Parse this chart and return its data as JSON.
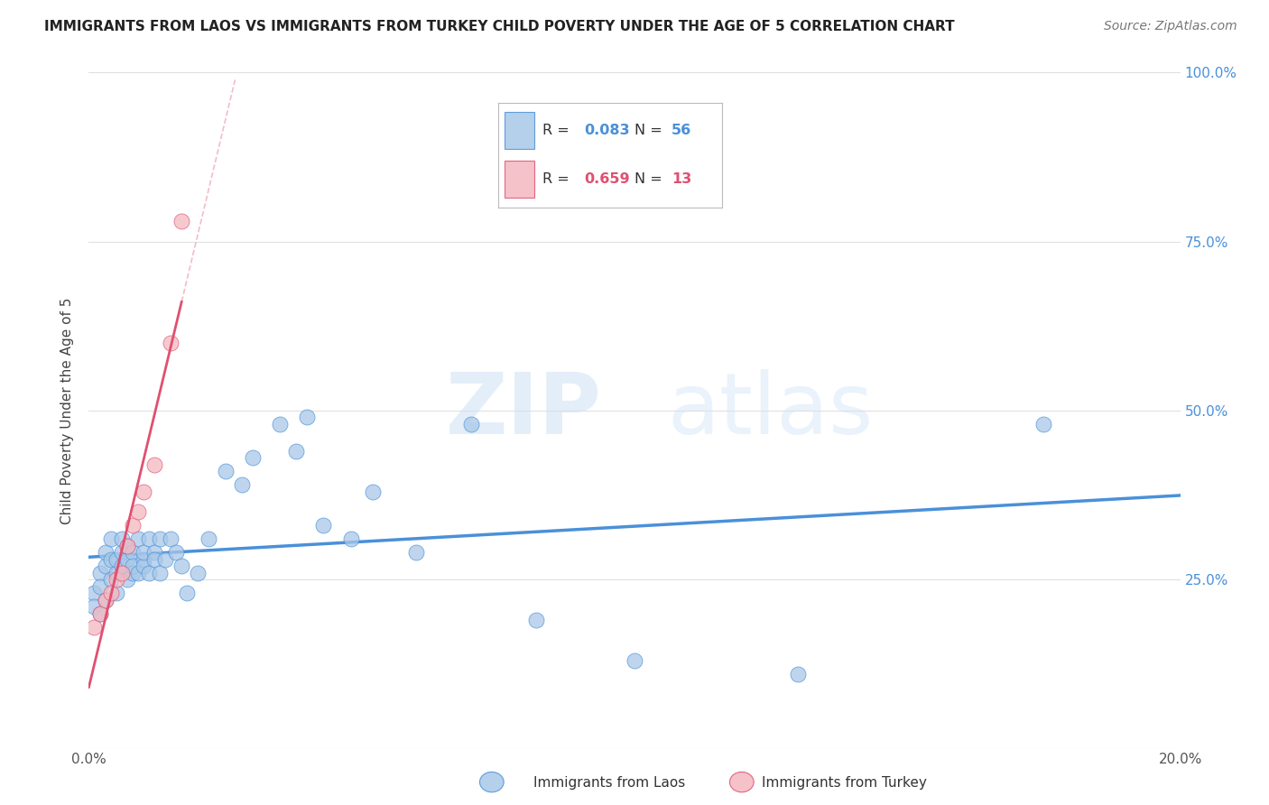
{
  "title": "IMMIGRANTS FROM LAOS VS IMMIGRANTS FROM TURKEY CHILD POVERTY UNDER THE AGE OF 5 CORRELATION CHART",
  "source": "Source: ZipAtlas.com",
  "ylabel": "Child Poverty Under the Age of 5",
  "xlabel_laos": "Immigrants from Laos",
  "xlabel_turkey": "Immigrants from Turkey",
  "r_laos": 0.083,
  "n_laos": 56,
  "r_turkey": 0.659,
  "n_turkey": 13,
  "color_laos": "#a8c8e8",
  "color_turkey": "#f4b8c0",
  "trendline_laos": "#4a90d9",
  "trendline_turkey": "#e05070",
  "trendline_turkey_dash": "#f0a0b0",
  "xlim_lo": 0.0,
  "xlim_hi": 0.2,
  "ylim_lo": 0.0,
  "ylim_hi": 1.0,
  "x_tick_positions": [
    0.0,
    0.05,
    0.1,
    0.15,
    0.2
  ],
  "x_tick_labels": [
    "0.0%",
    "",
    "",
    "",
    "20.0%"
  ],
  "y_tick_positions": [
    0.0,
    0.25,
    0.5,
    0.75,
    1.0
  ],
  "y_right_labels": [
    "",
    "25.0%",
    "50.0%",
    "75.0%",
    "100.0%"
  ],
  "laos_x": [
    0.001,
    0.001,
    0.002,
    0.002,
    0.002,
    0.003,
    0.003,
    0.003,
    0.004,
    0.004,
    0.004,
    0.005,
    0.005,
    0.005,
    0.006,
    0.006,
    0.006,
    0.007,
    0.007,
    0.007,
    0.008,
    0.008,
    0.008,
    0.009,
    0.009,
    0.01,
    0.01,
    0.01,
    0.011,
    0.011,
    0.012,
    0.012,
    0.013,
    0.013,
    0.014,
    0.015,
    0.016,
    0.017,
    0.018,
    0.02,
    0.022,
    0.025,
    0.028,
    0.03,
    0.035,
    0.038,
    0.04,
    0.043,
    0.048,
    0.052,
    0.06,
    0.07,
    0.082,
    0.1,
    0.13,
    0.175
  ],
  "laos_y": [
    0.23,
    0.21,
    0.26,
    0.2,
    0.24,
    0.27,
    0.22,
    0.29,
    0.28,
    0.25,
    0.31,
    0.26,
    0.28,
    0.23,
    0.29,
    0.27,
    0.31,
    0.25,
    0.28,
    0.3,
    0.26,
    0.29,
    0.27,
    0.31,
    0.26,
    0.28,
    0.27,
    0.29,
    0.31,
    0.26,
    0.29,
    0.28,
    0.31,
    0.26,
    0.28,
    0.31,
    0.29,
    0.27,
    0.23,
    0.26,
    0.31,
    0.41,
    0.39,
    0.43,
    0.48,
    0.44,
    0.49,
    0.33,
    0.31,
    0.38,
    0.29,
    0.48,
    0.19,
    0.13,
    0.11,
    0.48
  ],
  "turkey_x": [
    0.001,
    0.002,
    0.003,
    0.004,
    0.005,
    0.006,
    0.007,
    0.008,
    0.009,
    0.01,
    0.012,
    0.015,
    0.017
  ],
  "turkey_y": [
    0.18,
    0.2,
    0.22,
    0.23,
    0.25,
    0.26,
    0.3,
    0.33,
    0.35,
    0.38,
    0.42,
    0.6,
    0.78
  ],
  "watermark_zip": "ZIP",
  "watermark_atlas": "atlas",
  "background_color": "#ffffff",
  "grid_color": "#e0e0e0",
  "title_fontsize": 11,
  "source_fontsize": 10,
  "tick_fontsize": 11,
  "ylabel_fontsize": 11
}
